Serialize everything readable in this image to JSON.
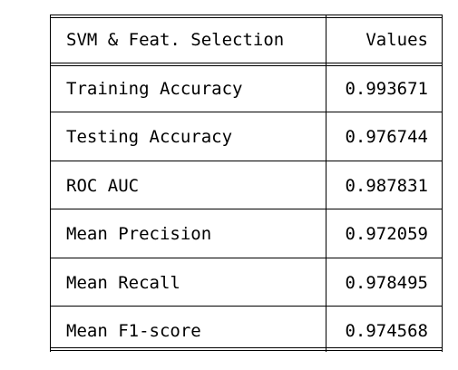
{
  "table": {
    "header": {
      "metric": "SVM & Feat. Selection",
      "value": "Values"
    },
    "rows": [
      {
        "metric": "Training Accuracy",
        "value": "0.993671"
      },
      {
        "metric": "Testing Accuracy",
        "value": "0.976744"
      },
      {
        "metric": "ROC AUC",
        "value": "0.987831"
      },
      {
        "metric": "Mean Precision",
        "value": "0.972059"
      },
      {
        "metric": "Mean Recall",
        "value": "0.978495"
      },
      {
        "metric": "Mean F1-score",
        "value": "0.974568"
      }
    ]
  }
}
